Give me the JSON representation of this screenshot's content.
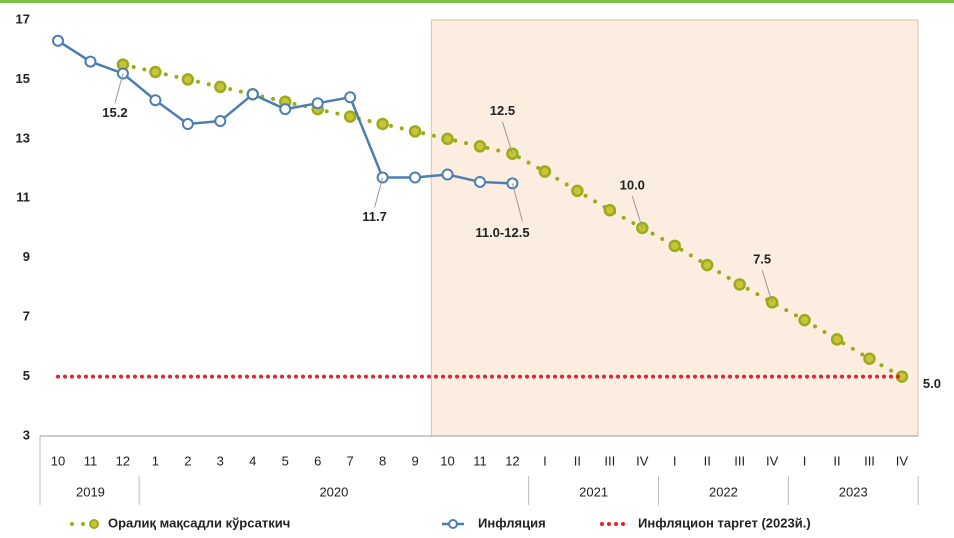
{
  "chart_data": {
    "type": "line",
    "categories": [
      "10",
      "11",
      "12",
      "1",
      "2",
      "3",
      "4",
      "5",
      "6",
      "7",
      "8",
      "9",
      "10",
      "11",
      "12",
      "I",
      "II",
      "III",
      "IV",
      "I",
      "II",
      "III",
      "IV",
      "I",
      "II",
      "III",
      "IV"
    ],
    "groups": [
      {
        "label": "2019",
        "count": 3
      },
      {
        "label": "2020",
        "count": 12
      },
      {
        "label": "2021",
        "count": 4
      },
      {
        "label": "2022",
        "count": 4
      },
      {
        "label": "2023",
        "count": 4
      }
    ],
    "series": [
      {
        "name": "Оралиқ мақсадли кўрсаткич",
        "color": "#9aab1c",
        "style": "dotted-markers",
        "values": [
          null,
          null,
          15.5,
          15.25,
          15.0,
          14.75,
          14.5,
          14.25,
          14.0,
          13.75,
          13.5,
          13.25,
          13.0,
          12.75,
          12.5,
          11.9,
          11.25,
          10.6,
          10.0,
          9.4,
          8.75,
          8.1,
          7.5,
          6.9,
          6.25,
          5.6,
          5.0
        ],
        "value_labels": [
          null,
          null,
          null,
          null,
          null,
          null,
          null,
          null,
          null,
          null,
          null,
          null,
          null,
          null,
          "12.5",
          null,
          null,
          null,
          "10.0",
          null,
          null,
          null,
          "7.5",
          null,
          null,
          null,
          null
        ]
      },
      {
        "name": "Инфляция",
        "color": "#4a7fb0",
        "style": "solid-markers",
        "values": [
          16.3,
          15.6,
          15.2,
          14.3,
          13.5,
          13.6,
          14.5,
          14.0,
          14.2,
          14.4,
          11.7,
          11.7,
          11.8,
          11.55,
          11.5,
          null,
          null,
          null,
          null,
          null,
          null,
          null,
          null,
          null,
          null,
          null,
          null
        ],
        "value_labels": [
          null,
          null,
          "15.2",
          null,
          null,
          null,
          null,
          null,
          null,
          null,
          "11.7",
          null,
          null,
          null,
          null,
          null,
          null,
          null,
          null,
          null,
          null,
          null,
          null,
          null,
          null,
          null,
          null
        ]
      },
      {
        "name": "Инфляцион таргет (2023й.)",
        "color": "#e8202a",
        "style": "dotted",
        "values": [
          5,
          5,
          5,
          5,
          5,
          5,
          5,
          5,
          5,
          5,
          5,
          5,
          5,
          5,
          5,
          5,
          5,
          5,
          5,
          5,
          5,
          5,
          5,
          5,
          5,
          5,
          5
        ],
        "value_labels": [
          null,
          null,
          null,
          null,
          null,
          null,
          null,
          null,
          null,
          null,
          null,
          null,
          null,
          null,
          null,
          null,
          null,
          null,
          null,
          null,
          null,
          null,
          null,
          null,
          null,
          null,
          "5.0"
        ]
      }
    ],
    "annotation": "11.0-12.5",
    "ylim": [
      3,
      17
    ],
    "yticks": [
      3,
      5,
      7,
      9,
      11,
      13,
      15,
      17
    ],
    "grid": false
  }
}
